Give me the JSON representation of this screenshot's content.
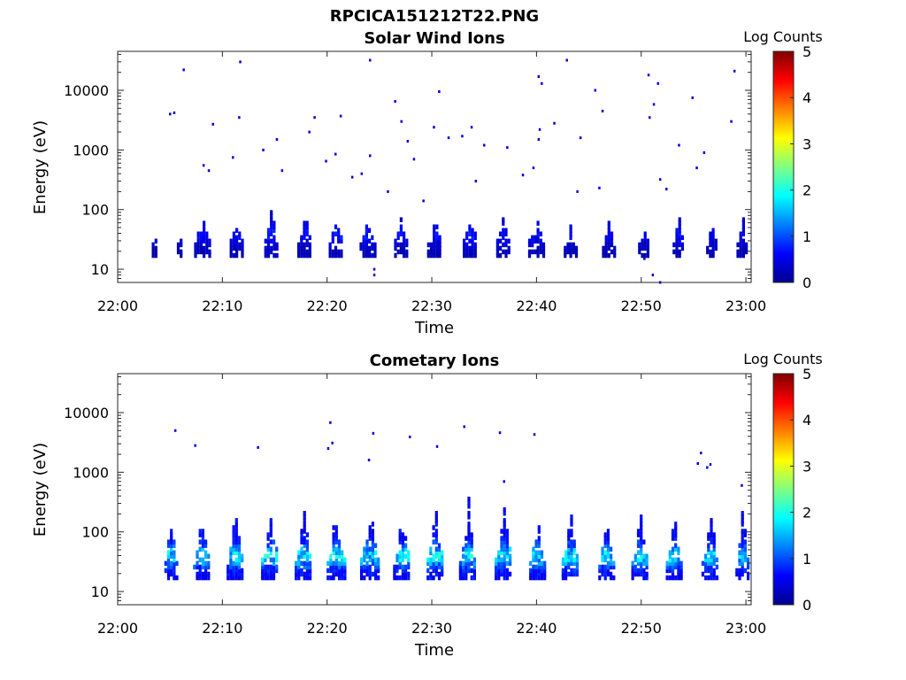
{
  "figure": {
    "title": "RPCICA151212T22.PNG"
  },
  "colormap": [
    "#00008f",
    "#0000ff",
    "#0080ff",
    "#00ffff",
    "#80ff80",
    "#ffff00",
    "#ff8000",
    "#ff0000",
    "#800000"
  ],
  "chart_data": [
    {
      "type": "heatmap",
      "title": "Solar Wind Ions",
      "xlabel": "Time",
      "ylabel": "Energy (eV)",
      "x_tick_labels": [
        "22:00",
        "22:10",
        "22:20",
        "22:30",
        "22:40",
        "22:50",
        "23:00"
      ],
      "x_ticks_minutes": [
        0,
        10,
        20,
        30,
        40,
        50,
        60
      ],
      "xlim_minutes": [
        0,
        60.5
      ],
      "y_scale": "log",
      "y_tick_labels": [
        "10",
        "100",
        "1000",
        "10000"
      ],
      "y_ticks": [
        10,
        100,
        1000,
        10000
      ],
      "ylim": [
        6,
        45000
      ],
      "colorbar": {
        "label": "Log Counts",
        "min": 0,
        "max": 5,
        "tick_labels": [
          "0",
          "1",
          "2",
          "3",
          "4",
          "5"
        ]
      },
      "bursts": [
        {
          "t": 3.4,
          "w": 0.3,
          "peak_e": 40,
          "max_e": 60,
          "level": 0.5
        },
        {
          "t": 5.8,
          "w": 0.3,
          "peak_e": 40,
          "max_e": 55,
          "level": 0.5
        },
        {
          "t": 8.0,
          "w": 1.4,
          "peak_e": 40,
          "max_e": 90,
          "level": 0.7
        },
        {
          "t": 11.3,
          "w": 1.2,
          "peak_e": 40,
          "max_e": 90,
          "level": 0.7
        },
        {
          "t": 14.6,
          "w": 1.2,
          "peak_e": 40,
          "max_e": 220,
          "level": 0.8
        },
        {
          "t": 17.8,
          "w": 1.3,
          "peak_e": 40,
          "max_e": 100,
          "level": 0.7
        },
        {
          "t": 20.8,
          "w": 1.3,
          "peak_e": 40,
          "max_e": 100,
          "level": 0.8
        },
        {
          "t": 23.8,
          "w": 1.4,
          "peak_e": 40,
          "max_e": 70,
          "level": 0.8
        },
        {
          "t": 27.0,
          "w": 1.2,
          "peak_e": 40,
          "max_e": 100,
          "level": 0.7
        },
        {
          "t": 30.2,
          "w": 1.3,
          "peak_e": 40,
          "max_e": 90,
          "level": 0.7
        },
        {
          "t": 33.6,
          "w": 1.3,
          "peak_e": 40,
          "max_e": 120,
          "level": 0.8
        },
        {
          "t": 36.8,
          "w": 1.3,
          "peak_e": 40,
          "max_e": 90,
          "level": 0.7
        },
        {
          "t": 39.9,
          "w": 1.4,
          "peak_e": 40,
          "max_e": 90,
          "level": 0.7
        },
        {
          "t": 43.2,
          "w": 1.2,
          "peak_e": 40,
          "max_e": 80,
          "level": 0.7
        },
        {
          "t": 46.8,
          "w": 1.1,
          "peak_e": 40,
          "max_e": 80,
          "level": 0.6
        },
        {
          "t": 50.2,
          "w": 1.0,
          "peak_e": 40,
          "max_e": 50,
          "level": 0.6
        },
        {
          "t": 53.5,
          "w": 1.0,
          "peak_e": 40,
          "max_e": 110,
          "level": 0.7
        },
        {
          "t": 56.7,
          "w": 1.0,
          "peak_e": 40,
          "max_e": 70,
          "level": 0.6
        },
        {
          "t": 59.6,
          "w": 1.0,
          "peak_e": 40,
          "max_e": 80,
          "level": 0.6
        }
      ],
      "scatter": [
        [
          6.2,
          22000
        ],
        [
          11.6,
          30000
        ],
        [
          24.0,
          32000
        ],
        [
          42.8,
          32000
        ],
        [
          58.8,
          21000
        ],
        [
          4.9,
          4000
        ],
        [
          5.3,
          4200
        ],
        [
          9.0,
          2700
        ],
        [
          11.5,
          3500
        ],
        [
          15.1,
          1500
        ],
        [
          18.2,
          2000
        ],
        [
          21.2,
          3700
        ],
        [
          26.4,
          6500
        ],
        [
          27.0,
          3000
        ],
        [
          27.6,
          1400
        ],
        [
          30.6,
          9500
        ],
        [
          30.1,
          2400
        ],
        [
          31.5,
          1600
        ],
        [
          32.8,
          1700
        ],
        [
          33.7,
          2400
        ],
        [
          34.9,
          1200
        ],
        [
          37.1,
          1100
        ],
        [
          40.1,
          17000
        ],
        [
          40.4,
          13000
        ],
        [
          40.2,
          2200
        ],
        [
          40.1,
          1500
        ],
        [
          41.6,
          2800
        ],
        [
          44.1,
          1600
        ],
        [
          45.5,
          10000
        ],
        [
          46.2,
          4500
        ],
        [
          50.6,
          18000
        ],
        [
          51.5,
          13000
        ],
        [
          51.1,
          5800
        ],
        [
          50.7,
          3500
        ],
        [
          54.8,
          7500
        ],
        [
          53.5,
          1200
        ],
        [
          55.9,
          900
        ],
        [
          55.2,
          500
        ],
        [
          58.5,
          3000
        ],
        [
          10.9,
          750
        ],
        [
          8.1,
          550
        ],
        [
          8.6,
          450
        ],
        [
          13.8,
          1000
        ],
        [
          15.6,
          450
        ],
        [
          18.7,
          3500
        ],
        [
          19.8,
          650
        ],
        [
          20.7,
          850
        ],
        [
          22.3,
          350
        ],
        [
          23.2,
          400
        ],
        [
          24.0,
          800
        ],
        [
          25.7,
          200
        ],
        [
          28.2,
          700
        ],
        [
          29.1,
          140
        ],
        [
          34.1,
          300
        ],
        [
          38.6,
          380
        ],
        [
          39.6,
          500
        ],
        [
          43.8,
          200
        ],
        [
          45.9,
          230
        ],
        [
          51.7,
          320
        ],
        [
          52.3,
          220
        ],
        [
          24.4,
          8
        ],
        [
          24.4,
          10
        ],
        [
          50.2,
          15
        ],
        [
          51.0,
          8
        ],
        [
          51.7,
          6
        ]
      ]
    },
    {
      "type": "heatmap",
      "title": "Cometary Ions",
      "xlabel": "Time",
      "ylabel": "Energy (eV)",
      "x_tick_labels": [
        "22:00",
        "22:10",
        "22:20",
        "22:30",
        "22:40",
        "22:50",
        "23:00"
      ],
      "x_ticks_minutes": [
        0,
        10,
        20,
        30,
        40,
        50,
        60
      ],
      "xlim_minutes": [
        0,
        60.5
      ],
      "y_scale": "log",
      "y_tick_labels": [
        "10",
        "100",
        "1000",
        "10000"
      ],
      "y_ticks": [
        10,
        100,
        1000,
        10000
      ],
      "ylim": [
        6,
        45000
      ],
      "colorbar": {
        "label": "Log Counts",
        "min": 0,
        "max": 5,
        "tick_labels": [
          "0",
          "1",
          "2",
          "3",
          "4",
          "5"
        ]
      },
      "bursts": [
        {
          "t": 5.0,
          "w": 1.1,
          "peak_e": 40,
          "max_e": 350,
          "level": 1.9
        },
        {
          "t": 8.0,
          "w": 1.6,
          "peak_e": 40,
          "max_e": 220,
          "level": 2.0
        },
        {
          "t": 11.2,
          "w": 1.6,
          "peak_e": 40,
          "max_e": 300,
          "level": 2.0
        },
        {
          "t": 14.5,
          "w": 1.6,
          "peak_e": 40,
          "max_e": 330,
          "level": 2.0
        },
        {
          "t": 17.7,
          "w": 1.6,
          "peak_e": 40,
          "max_e": 300,
          "level": 2.0
        },
        {
          "t": 20.8,
          "w": 1.7,
          "peak_e": 40,
          "max_e": 320,
          "level": 2.0
        },
        {
          "t": 24.0,
          "w": 1.7,
          "peak_e": 40,
          "max_e": 300,
          "level": 1.9
        },
        {
          "t": 27.1,
          "w": 1.6,
          "peak_e": 40,
          "max_e": 300,
          "level": 2.0
        },
        {
          "t": 30.3,
          "w": 1.6,
          "peak_e": 40,
          "max_e": 280,
          "level": 2.0
        },
        {
          "t": 33.4,
          "w": 1.6,
          "peak_e": 40,
          "max_e": 400,
          "level": 2.0
        },
        {
          "t": 36.8,
          "w": 1.6,
          "peak_e": 40,
          "max_e": 320,
          "level": 2.0
        },
        {
          "t": 40.0,
          "w": 1.4,
          "peak_e": 40,
          "max_e": 200,
          "level": 1.9
        },
        {
          "t": 43.2,
          "w": 1.6,
          "peak_e": 40,
          "max_e": 300,
          "level": 2.0
        },
        {
          "t": 46.6,
          "w": 1.4,
          "peak_e": 40,
          "max_e": 200,
          "level": 1.9
        },
        {
          "t": 49.8,
          "w": 1.5,
          "peak_e": 40,
          "max_e": 250,
          "level": 2.0
        },
        {
          "t": 53.1,
          "w": 1.5,
          "peak_e": 40,
          "max_e": 230,
          "level": 2.0
        },
        {
          "t": 56.5,
          "w": 1.5,
          "peak_e": 40,
          "max_e": 300,
          "level": 1.9
        },
        {
          "t": 59.6,
          "w": 1.2,
          "peak_e": 40,
          "max_e": 400,
          "level": 1.8
        }
      ],
      "scatter": [
        [
          5.4,
          5000
        ],
        [
          7.3,
          2800
        ],
        [
          13.3,
          2600
        ],
        [
          20.2,
          6800
        ],
        [
          20.4,
          3100
        ],
        [
          20.0,
          2500
        ],
        [
          24.3,
          4500
        ],
        [
          23.9,
          1600
        ],
        [
          27.8,
          3900
        ],
        [
          30.4,
          2700
        ],
        [
          33.0,
          5800
        ],
        [
          36.4,
          4600
        ],
        [
          39.7,
          4300
        ],
        [
          55.6,
          2100
        ],
        [
          55.3,
          1400
        ],
        [
          56.2,
          1200
        ],
        [
          56.5,
          1350
        ],
        [
          59.5,
          600
        ],
        [
          36.8,
          700
        ]
      ]
    }
  ]
}
